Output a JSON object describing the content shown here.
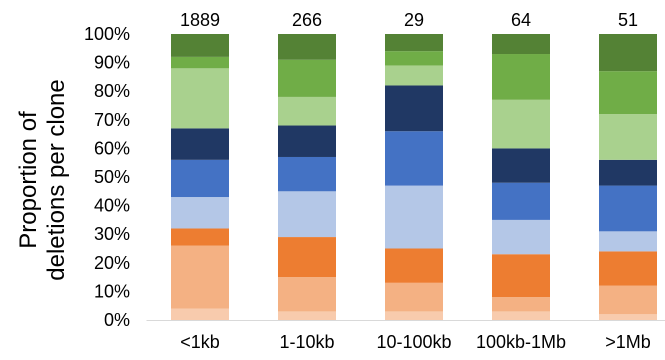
{
  "chart_data": {
    "type": "bar",
    "stacked": true,
    "categories": [
      "<1kb",
      "1-10kb",
      "10-100kb",
      "100kb-1Mb",
      ">1Mb"
    ],
    "bar_top_labels": [
      "1889",
      "266",
      "29",
      "64",
      "51"
    ],
    "ylabel": "Proportion of deletions per clone",
    "ylabel_lines": [
      "Proportion of",
      "deletions per clone"
    ],
    "yticks": [
      "0%",
      "10%",
      "20%",
      "30%",
      "40%",
      "50%",
      "60%",
      "70%",
      "80%",
      "90%",
      "100%"
    ],
    "ylim": [
      0,
      100
    ],
    "grid": false,
    "legend": "none",
    "series": [
      {
        "color": "#f8cbad",
        "values": [
          4,
          3,
          3,
          3,
          2
        ]
      },
      {
        "color": "#f4b183",
        "values": [
          22,
          12,
          10,
          5,
          10
        ]
      },
      {
        "color": "#ed7d31",
        "values": [
          6,
          14,
          12,
          15,
          12
        ]
      },
      {
        "color": "#b4c7e7",
        "values": [
          11,
          16,
          22,
          12,
          7
        ]
      },
      {
        "color": "#4472c4",
        "values": [
          13,
          12,
          19,
          13,
          16
        ]
      },
      {
        "color": "#203864",
        "values": [
          11,
          11,
          16,
          12,
          9
        ]
      },
      {
        "color": "#a9d18e",
        "values": [
          21,
          10,
          7,
          17,
          16
        ]
      },
      {
        "color": "#70ad47",
        "values": [
          4,
          13,
          5,
          16,
          15
        ]
      },
      {
        "color": "#548235",
        "values": [
          8,
          9,
          6,
          7,
          13
        ]
      }
    ]
  }
}
